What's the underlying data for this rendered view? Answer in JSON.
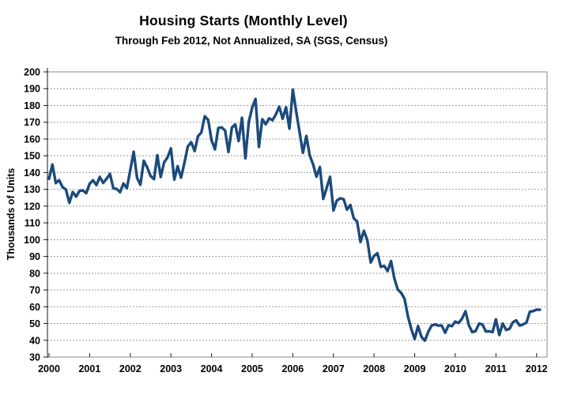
{
  "chart_data": {
    "type": "line",
    "title": "Housing Starts (Monthly Level)",
    "subtitle": "Through Feb 2012, Not Annualized, SA (SGS, Census)",
    "ylabel": "Thousands of Units",
    "ylim": [
      30,
      200
    ],
    "ytick_step": 10,
    "y_tick_labels": [
      200,
      190,
      180,
      170,
      160,
      150,
      140,
      130,
      120,
      110,
      100,
      90,
      80,
      70,
      60,
      50,
      40,
      30
    ],
    "x_tick_years": [
      2000,
      2001,
      2002,
      2003,
      2004,
      2005,
      2006,
      2007,
      2008,
      2009,
      2010,
      2011,
      2012
    ],
    "x_start": "2000-01",
    "x_end": "2012-02",
    "grid": true,
    "legend_position": "none",
    "line_color": "#1B4A7C",
    "series": [
      {
        "name": "housing-starts-monthly-thousands",
        "values": [
          136.3,
          144.8,
          133.7,
          135.5,
          131.3,
          129.9,
          121.9,
          128.4,
          125.6,
          129.1,
          129.3,
          127.7,
          133.3,
          135.4,
          132.5,
          137.4,
          133.8,
          136.3,
          139.2,
          130.6,
          130.2,
          128.3,
          133.5,
          130.7,
          141.5,
          152.4,
          136.8,
          132.7,
          147.0,
          143.1,
          137.9,
          136.1,
          150.3,
          137.3,
          146.1,
          149.0,
          154.4,
          135.8,
          143.8,
          136.9,
          145.9,
          155.6,
          158.1,
          152.8,
          161.6,
          163.9,
          173.6,
          171.4,
          159.3,
          153.8,
          166.5,
          166.9,
          165.1,
          152.3,
          166.8,
          168.7,
          158.8,
          172.7,
          148.5,
          170.2,
          178.7,
          183.9,
          155.3,
          171.8,
          168.8,
          172.3,
          171.2,
          174.6,
          179.3,
          172.1,
          178.9,
          166.2,
          189.4,
          176.6,
          164.1,
          151.8,
          161.8,
          150.2,
          144.8,
          137.5,
          143.3,
          124.3,
          130.8,
          137.4,
          117.4,
          123.3,
          124.6,
          124.2,
          117.9,
          120.7,
          112.8,
          110.8,
          98.6,
          105.3,
          99.8,
          86.4,
          90.3,
          91.9,
          83.8,
          84.4,
          81.3,
          87.2,
          76.9,
          70.3,
          68.3,
          64.8,
          54.3,
          46.7,
          40.8,
          48.5,
          42.1,
          39.8,
          45.0,
          48.8,
          49.5,
          48.8,
          48.8,
          44.5,
          49.0,
          48.4,
          51.2,
          50.3,
          53.0,
          57.3,
          49.0,
          44.9,
          45.5,
          49.9,
          49.5,
          45.3,
          45.4,
          44.9,
          52.5,
          43.2,
          50.0,
          46.2,
          46.8,
          50.7,
          51.9,
          48.8,
          49.5,
          50.5,
          57.1,
          57.4,
          58.3,
          58.2
        ]
      }
    ]
  }
}
